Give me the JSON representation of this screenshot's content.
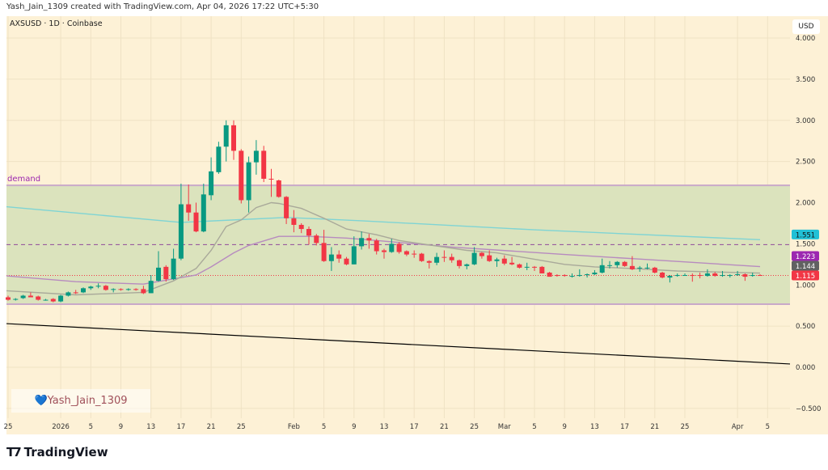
{
  "header": {
    "credit": "Yash_Jain_1309 created with TradingView.com, Apr 04, 2026 17:22 UTC+5:30"
  },
  "symbol_legend": "AXSUSD · 1D · Coinbase",
  "currency": "USD",
  "watermark": {
    "icon": "blue-heart-icon",
    "text": "Yash_Jain_1309"
  },
  "brand": {
    "logo": "TV",
    "name": "TradingView"
  },
  "colors": {
    "background": "#fdf1d6",
    "up": "#089981",
    "down": "#f23645",
    "zone_fill": "#dbe3bd",
    "zone_border": "#c9a9c9",
    "zone_label": "#9c27b0",
    "ma_long": "#7fd4d4",
    "ma_mid": "#b78bbf",
    "ma_short": "#a9a99a",
    "trendline": "#000000"
  },
  "chart_data": {
    "type": "candlestick",
    "title": "AXSUSD · 1D · Coinbase",
    "ylim": [
      -0.6,
      4.2
    ],
    "grid": true,
    "yticks": [
      "4.000",
      "3.500",
      "3.000",
      "2.500",
      "2.000",
      "1.500",
      "1.000",
      "0.500",
      "0.000",
      "−0.500"
    ],
    "ytick_values": [
      4,
      3.5,
      3,
      2.5,
      2,
      1.5,
      1,
      0.5,
      0,
      -0.5
    ],
    "xticks": [
      {
        "date": "2025-12-25",
        "label": "25"
      },
      {
        "date": "2026-01-01",
        "label": "2026"
      },
      {
        "date": "2026-01-05",
        "label": "5"
      },
      {
        "date": "2026-01-09",
        "label": "9"
      },
      {
        "date": "2026-01-13",
        "label": "13"
      },
      {
        "date": "2026-01-17",
        "label": "17"
      },
      {
        "date": "2026-01-21",
        "label": "21"
      },
      {
        "date": "2026-01-25",
        "label": "25"
      },
      {
        "date": "2026-02-01",
        "label": "Feb"
      },
      {
        "date": "2026-02-05",
        "label": "5"
      },
      {
        "date": "2026-02-09",
        "label": "9"
      },
      {
        "date": "2026-02-13",
        "label": "13"
      },
      {
        "date": "2026-02-17",
        "label": "17"
      },
      {
        "date": "2026-02-21",
        "label": "21"
      },
      {
        "date": "2026-02-25",
        "label": "25"
      },
      {
        "date": "2026-03-01",
        "label": "Mar"
      },
      {
        "date": "2026-03-05",
        "label": "5"
      },
      {
        "date": "2026-03-09",
        "label": "9"
      },
      {
        "date": "2026-03-13",
        "label": "13"
      },
      {
        "date": "2026-03-17",
        "label": "17"
      },
      {
        "date": "2026-03-21",
        "label": "21"
      },
      {
        "date": "2026-03-25",
        "label": "25"
      },
      {
        "date": "2026-04-01",
        "label": "Apr"
      },
      {
        "date": "2026-04-05",
        "label": "5"
      }
    ],
    "start_date": "2025-12-25",
    "ohlc": [
      [
        0.85,
        0.87,
        0.81,
        0.82
      ],
      [
        0.82,
        0.84,
        0.81,
        0.83
      ],
      [
        0.84,
        0.88,
        0.83,
        0.87
      ],
      [
        0.87,
        0.91,
        0.85,
        0.85
      ],
      [
        0.86,
        0.87,
        0.81,
        0.82
      ],
      [
        0.82,
        0.83,
        0.81,
        0.82
      ],
      [
        0.83,
        0.84,
        0.79,
        0.8
      ],
      [
        0.8,
        0.88,
        0.79,
        0.87
      ],
      [
        0.87,
        0.92,
        0.86,
        0.91
      ],
      [
        0.91,
        0.94,
        0.89,
        0.9
      ],
      [
        0.91,
        0.97,
        0.9,
        0.96
      ],
      [
        0.96,
        0.99,
        0.94,
        0.98
      ],
      [
        0.98,
        1.02,
        0.96,
        0.99
      ],
      [
        0.99,
        1.0,
        0.93,
        0.94
      ],
      [
        0.94,
        0.96,
        0.91,
        0.95
      ],
      [
        0.95,
        0.96,
        0.93,
        0.94
      ],
      [
        0.94,
        0.96,
        0.93,
        0.95
      ],
      [
        0.95,
        0.96,
        0.93,
        0.94
      ],
      [
        0.95,
        0.99,
        0.89,
        0.9
      ],
      [
        0.9,
        1.12,
        0.9,
        1.05
      ],
      [
        1.05,
        1.41,
        1.04,
        1.21
      ],
      [
        1.22,
        1.24,
        1.04,
        1.07
      ],
      [
        1.07,
        1.44,
        1.06,
        1.32
      ],
      [
        1.32,
        2.23,
        1.3,
        1.98
      ],
      [
        1.98,
        2.22,
        1.78,
        1.88
      ],
      [
        1.88,
        2.0,
        1.64,
        1.65
      ],
      [
        1.65,
        2.23,
        1.64,
        2.1
      ],
      [
        2.09,
        2.55,
        2.03,
        2.38
      ],
      [
        2.37,
        2.74,
        2.35,
        2.68
      ],
      [
        2.68,
        3.0,
        2.5,
        2.94
      ],
      [
        2.94,
        3.0,
        2.52,
        2.63
      ],
      [
        2.63,
        2.65,
        1.99,
        2.03
      ],
      [
        2.03,
        2.56,
        1.88,
        2.49
      ],
      [
        2.49,
        2.76,
        2.34,
        2.63
      ],
      [
        2.63,
        2.69,
        2.25,
        2.29
      ],
      [
        2.29,
        2.41,
        2.07,
        2.28
      ],
      [
        2.27,
        2.28,
        2.06,
        2.07
      ],
      [
        2.07,
        2.08,
        1.74,
        1.81
      ],
      [
        1.81,
        1.91,
        1.64,
        1.73
      ],
      [
        1.73,
        1.75,
        1.63,
        1.68
      ],
      [
        1.68,
        1.71,
        1.49,
        1.6
      ],
      [
        1.6,
        1.62,
        1.48,
        1.51
      ],
      [
        1.51,
        1.67,
        1.28,
        1.29
      ],
      [
        1.29,
        1.46,
        1.17,
        1.37
      ],
      [
        1.37,
        1.42,
        1.27,
        1.32
      ],
      [
        1.32,
        1.34,
        1.24,
        1.25
      ],
      [
        1.25,
        1.59,
        1.25,
        1.47
      ],
      [
        1.47,
        1.65,
        1.43,
        1.57
      ],
      [
        1.57,
        1.62,
        1.44,
        1.54
      ],
      [
        1.54,
        1.56,
        1.37,
        1.41
      ],
      [
        1.42,
        1.44,
        1.32,
        1.4
      ],
      [
        1.4,
        1.56,
        1.39,
        1.5
      ],
      [
        1.5,
        1.52,
        1.38,
        1.4
      ],
      [
        1.41,
        1.42,
        1.35,
        1.37
      ],
      [
        1.38,
        1.42,
        1.33,
        1.37
      ],
      [
        1.38,
        1.39,
        1.28,
        1.29
      ],
      [
        1.29,
        1.3,
        1.2,
        1.27
      ],
      [
        1.27,
        1.39,
        1.24,
        1.34
      ],
      [
        1.34,
        1.42,
        1.28,
        1.33
      ],
      [
        1.34,
        1.38,
        1.27,
        1.3
      ],
      [
        1.3,
        1.31,
        1.2,
        1.23
      ],
      [
        1.23,
        1.26,
        1.19,
        1.25
      ],
      [
        1.25,
        1.46,
        1.24,
        1.39
      ],
      [
        1.39,
        1.4,
        1.32,
        1.35
      ],
      [
        1.36,
        1.42,
        1.28,
        1.29
      ],
      [
        1.29,
        1.33,
        1.22,
        1.31
      ],
      [
        1.32,
        1.36,
        1.24,
        1.26
      ],
      [
        1.27,
        1.34,
        1.24,
        1.25
      ],
      [
        1.25,
        1.26,
        1.2,
        1.21
      ],
      [
        1.22,
        1.27,
        1.18,
        1.22
      ],
      [
        1.22,
        1.23,
        1.17,
        1.21
      ],
      [
        1.22,
        1.23,
        1.14,
        1.14
      ],
      [
        1.15,
        1.16,
        1.1,
        1.1
      ],
      [
        1.12,
        1.13,
        1.1,
        1.11
      ],
      [
        1.12,
        1.13,
        1.1,
        1.11
      ],
      [
        1.1,
        1.14,
        1.09,
        1.11
      ],
      [
        1.11,
        1.19,
        1.1,
        1.12
      ],
      [
        1.12,
        1.14,
        1.09,
        1.13
      ],
      [
        1.13,
        1.18,
        1.12,
        1.15
      ],
      [
        1.15,
        1.32,
        1.14,
        1.24
      ],
      [
        1.23,
        1.29,
        1.2,
        1.24
      ],
      [
        1.24,
        1.29,
        1.21,
        1.28
      ],
      [
        1.28,
        1.29,
        1.22,
        1.23
      ],
      [
        1.23,
        1.35,
        1.18,
        1.19
      ],
      [
        1.2,
        1.23,
        1.16,
        1.21
      ],
      [
        1.2,
        1.26,
        1.19,
        1.21
      ],
      [
        1.21,
        1.22,
        1.14,
        1.15
      ],
      [
        1.15,
        1.16,
        1.08,
        1.09
      ],
      [
        1.09,
        1.12,
        1.03,
        1.11
      ],
      [
        1.11,
        1.14,
        1.1,
        1.12
      ],
      [
        1.12,
        1.14,
        1.11,
        1.12
      ],
      [
        1.12,
        1.14,
        1.04,
        1.11
      ],
      [
        1.12,
        1.15,
        1.08,
        1.11
      ],
      [
        1.11,
        1.19,
        1.1,
        1.14
      ],
      [
        1.14,
        1.16,
        1.1,
        1.11
      ],
      [
        1.11,
        1.17,
        1.1,
        1.12
      ],
      [
        1.12,
        1.13,
        1.09,
        1.12
      ],
      [
        1.12,
        1.17,
        1.11,
        1.13
      ],
      [
        1.13,
        1.14,
        1.05,
        1.1
      ],
      [
        1.11,
        1.15,
        1.1,
        1.12
      ],
      [
        1.12,
        1.13,
        1.11,
        1.115
      ]
    ],
    "moving_averages": [
      {
        "color_key": "ma_long",
        "points": [
          [
            "2025-12-24",
            1.95
          ],
          [
            "2026-01-17",
            1.76
          ],
          [
            "2026-01-31",
            1.82
          ],
          [
            "2026-02-10",
            1.78
          ],
          [
            "2026-03-05",
            1.67
          ],
          [
            "2026-04-04",
            1.55
          ]
        ]
      },
      {
        "color_key": "ma_mid",
        "points": [
          [
            "2025-12-24",
            1.11
          ],
          [
            "2026-01-03",
            1.04
          ],
          [
            "2026-01-12",
            1.01
          ],
          [
            "2026-01-19",
            1.12
          ],
          [
            "2026-01-21",
            1.22
          ],
          [
            "2026-01-24",
            1.39
          ],
          [
            "2026-01-26",
            1.48
          ],
          [
            "2026-01-30",
            1.59
          ],
          [
            "2026-02-03",
            1.59
          ],
          [
            "2026-02-08",
            1.57
          ],
          [
            "2026-02-12",
            1.54
          ],
          [
            "2026-02-22",
            1.46
          ],
          [
            "2026-03-09",
            1.37
          ],
          [
            "2026-03-18",
            1.32
          ],
          [
            "2026-04-04",
            1.223
          ]
        ]
      },
      {
        "color_key": "ma_short",
        "points": [
          [
            "2025-12-24",
            0.93
          ],
          [
            "2026-01-03",
            0.88
          ],
          [
            "2026-01-12",
            0.91
          ],
          [
            "2026-01-16",
            1.05
          ],
          [
            "2026-01-19",
            1.2
          ],
          [
            "2026-01-21",
            1.42
          ],
          [
            "2026-01-23",
            1.71
          ],
          [
            "2026-01-25",
            1.79
          ],
          [
            "2026-01-27",
            1.94
          ],
          [
            "2026-01-29",
            2.0
          ],
          [
            "2026-01-30",
            1.99
          ],
          [
            "2026-02-02",
            1.93
          ],
          [
            "2026-02-05",
            1.81
          ],
          [
            "2026-02-08",
            1.68
          ],
          [
            "2026-02-12",
            1.61
          ],
          [
            "2026-02-15",
            1.54
          ],
          [
            "2026-02-24",
            1.42
          ],
          [
            "2026-02-28",
            1.39
          ],
          [
            "2026-03-09",
            1.25
          ],
          [
            "2026-03-13",
            1.22
          ],
          [
            "2026-03-18",
            1.2
          ],
          [
            "2026-03-24",
            1.17
          ],
          [
            "2026-04-04",
            1.144
          ]
        ]
      }
    ],
    "zone": {
      "label": "demand",
      "top": 2.21,
      "bottom": 0.767
    },
    "dashed_level": 1.49,
    "current_price_line": 1.115,
    "trendline": [
      [
        "2025-12-24",
        0.53
      ],
      [
        "2026-04-08",
        0.04
      ]
    ],
    "price_labels": [
      {
        "text": "1.551",
        "value": 1.551,
        "color": "#22c0d6",
        "text_color": "#111"
      },
      {
        "text": "1.223",
        "value": 1.223,
        "color": "#9c27b0",
        "text_color": "#fff"
      },
      {
        "text": "1.144",
        "value": 1.144,
        "color": "#616161",
        "text_color": "#fff"
      },
      {
        "text": "1.115",
        "value": 1.115,
        "color": "#f23645",
        "text_color": "#fff"
      }
    ]
  }
}
